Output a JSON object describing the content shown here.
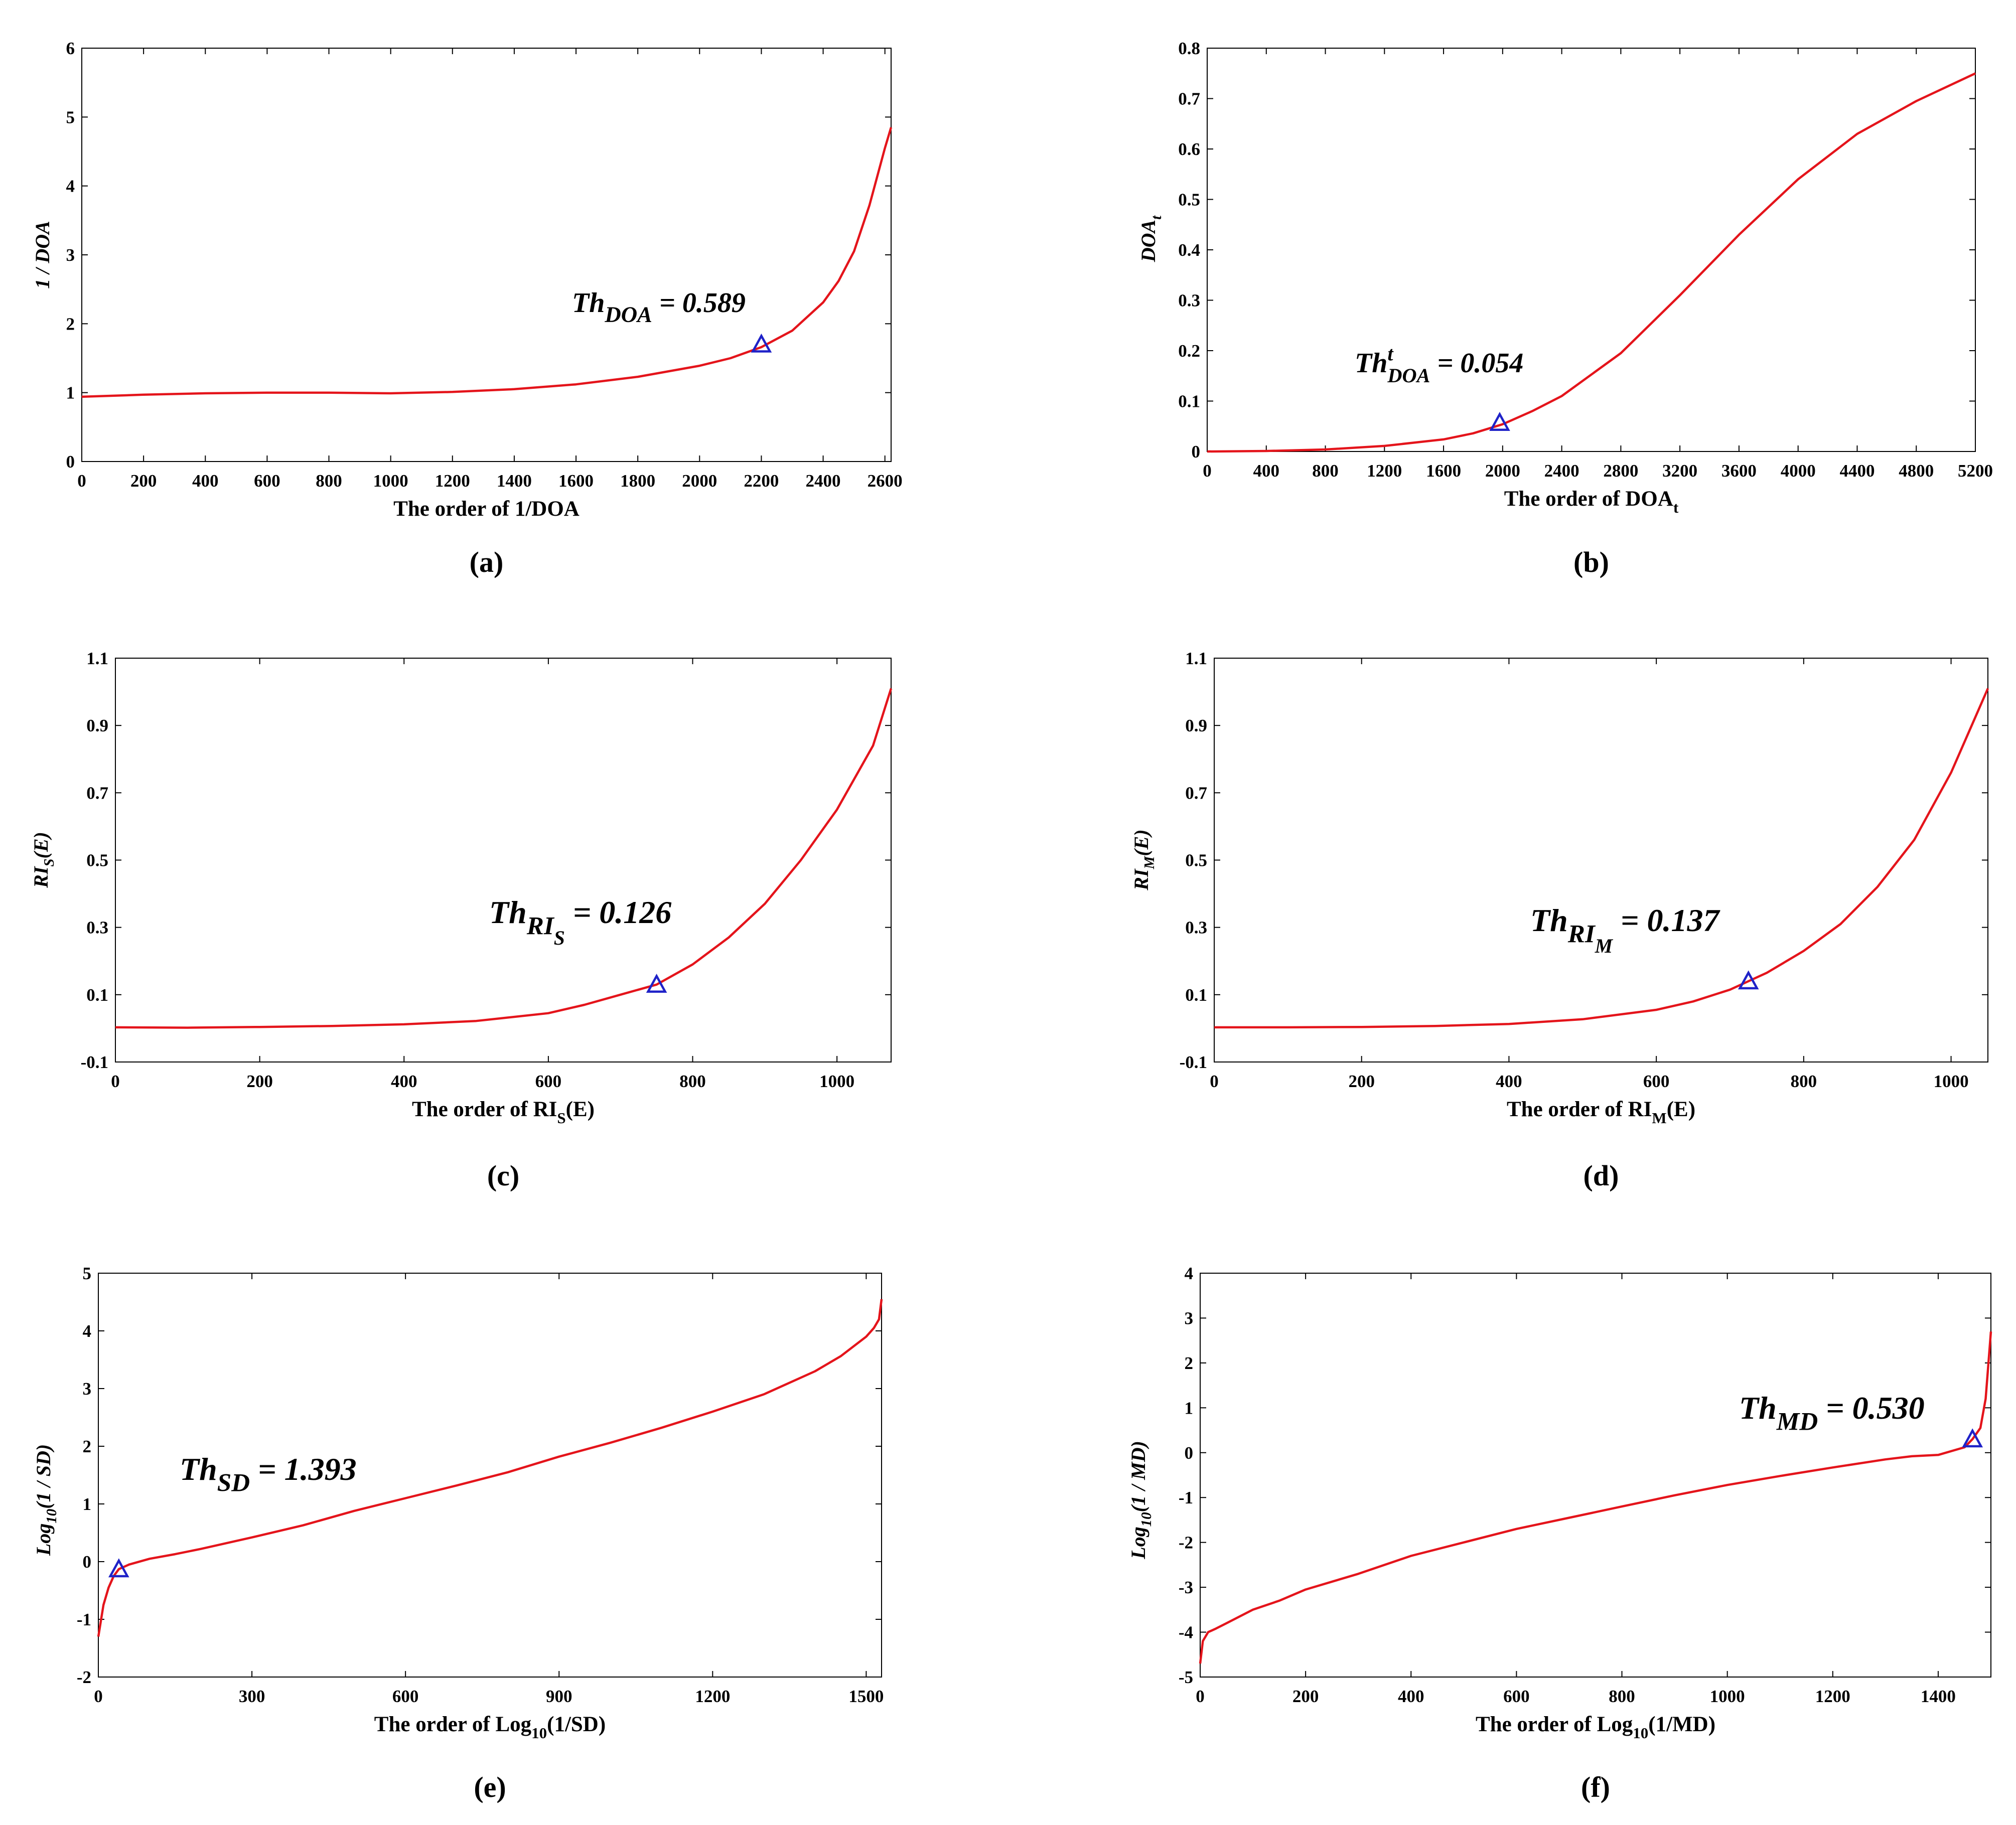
{
  "chart_data": [
    {
      "type": "line",
      "panel_label": "(a)",
      "xlabel": [
        "The order of 1/DOA"
      ],
      "ylabel": [
        "1 / DOA"
      ],
      "xlim": [
        0,
        2620
      ],
      "ylim": [
        0,
        6
      ],
      "xticks": [
        0,
        200,
        400,
        600,
        800,
        1000,
        1200,
        1400,
        1600,
        1800,
        2000,
        2200,
        2400,
        2600
      ],
      "yticks": [
        0,
        1,
        2,
        3,
        4,
        5,
        6
      ],
      "series": [
        {
          "name": "1/DOA",
          "x": [
            0,
            200,
            400,
            600,
            700,
            800,
            1000,
            1200,
            1400,
            1600,
            1800,
            2000,
            2100,
            2200,
            2300,
            2400,
            2450,
            2500,
            2550,
            2600,
            2620
          ],
          "y": [
            0.94,
            0.97,
            0.99,
            1.0,
            1.0,
            1.0,
            0.99,
            1.01,
            1.05,
            1.12,
            1.23,
            1.39,
            1.5,
            1.66,
            1.9,
            2.31,
            2.62,
            3.05,
            3.72,
            4.55,
            4.85
          ]
        }
      ],
      "marker": {
        "x": 2200,
        "y": 1.7
      },
      "annotation": [
        "Th",
        "DOA",
        "",
        " = 0.589"
      ],
      "grid": false
    },
    {
      "type": "line",
      "panel_label": "(b)",
      "xlabel": [
        "The order of DOA",
        "t"
      ],
      "ylabel": [
        "DOA",
        "t"
      ],
      "xlim": [
        0,
        5200
      ],
      "ylim": [
        0,
        0.8
      ],
      "xticks": [
        0,
        400,
        800,
        1200,
        1600,
        2000,
        2400,
        2800,
        3200,
        3600,
        4000,
        4400,
        4800,
        5200
      ],
      "yticks": [
        0,
        0.1,
        0.2,
        0.3,
        0.4,
        0.5,
        0.6,
        0.7,
        0.8
      ],
      "series": [
        {
          "name": "DOA_t",
          "x": [
            0,
            400,
            800,
            1200,
            1600,
            1800,
            2000,
            2200,
            2400,
            2800,
            3200,
            3600,
            4000,
            4400,
            4800,
            5200
          ],
          "y": [
            0.0,
            0.001,
            0.004,
            0.011,
            0.024,
            0.036,
            0.054,
            0.08,
            0.11,
            0.195,
            0.31,
            0.43,
            0.54,
            0.63,
            0.695,
            0.75
          ]
        }
      ],
      "marker": {
        "x": 1980,
        "y": 0.057
      },
      "annotation": [
        "Th",
        "DOA",
        "t",
        " = 0.054"
      ],
      "grid": false
    },
    {
      "type": "line",
      "panel_label": "(c)",
      "xlabel": [
        "The order of RI",
        "S",
        "(E)"
      ],
      "ylabel": [
        "RI",
        "S",
        "(E)"
      ],
      "xlim": [
        0,
        1075
      ],
      "ylim": [
        -0.1,
        1.1
      ],
      "xticks": [
        0,
        200,
        400,
        600,
        800,
        1000
      ],
      "yticks": [
        -0.1,
        0.1,
        0.3,
        0.5,
        0.7,
        0.9,
        1.1
      ],
      "series": [
        {
          "name": "RI_S(E)",
          "x": [
            0,
            100,
            200,
            300,
            400,
            500,
            600,
            650,
            700,
            750,
            800,
            850,
            900,
            950,
            1000,
            1050,
            1075
          ],
          "y": [
            0.003,
            0.002,
            0.004,
            0.007,
            0.012,
            0.022,
            0.045,
            0.07,
            0.1,
            0.13,
            0.19,
            0.27,
            0.37,
            0.5,
            0.65,
            0.84,
            1.01
          ]
        }
      ],
      "marker": {
        "x": 750,
        "y": 0.13
      },
      "annotation": [
        "Th",
        "RI",
        "",
        " = 0.126",
        "S"
      ],
      "grid": false
    },
    {
      "type": "line",
      "panel_label": "(d)",
      "xlabel": [
        "The order of RI",
        "M",
        "(E)"
      ],
      "ylabel": [
        "RI",
        "M",
        "(E)"
      ],
      "xlim": [
        0,
        1050
      ],
      "ylim": [
        -0.1,
        1.1
      ],
      "xticks": [
        0,
        200,
        400,
        600,
        800,
        1000
      ],
      "yticks": [
        -0.1,
        0.1,
        0.3,
        0.5,
        0.7,
        0.9,
        1.1
      ],
      "series": [
        {
          "name": "RI_M(E)",
          "x": [
            0,
            100,
            200,
            300,
            400,
            500,
            600,
            650,
            700,
            725,
            750,
            800,
            850,
            900,
            950,
            1000,
            1050
          ],
          "y": [
            0.003,
            0.003,
            0.004,
            0.007,
            0.013,
            0.027,
            0.055,
            0.08,
            0.115,
            0.14,
            0.165,
            0.23,
            0.31,
            0.42,
            0.56,
            0.76,
            1.01
          ]
        }
      ],
      "marker": {
        "x": 725,
        "y": 0.14
      },
      "annotation": [
        "Th",
        "RI",
        "",
        " = 0.137",
        "M"
      ],
      "grid": false
    },
    {
      "type": "line",
      "panel_label": "(e)",
      "xlabel": [
        "The order of Log",
        "10",
        "(1/SD)"
      ],
      "ylabel": [
        "Log",
        "10",
        "(1 / SD)"
      ],
      "xlim": [
        0,
        1530
      ],
      "ylim": [
        -2,
        5
      ],
      "xticks": [
        0,
        300,
        600,
        900,
        1200,
        1500
      ],
      "yticks": [
        -2,
        -1,
        0,
        1,
        2,
        3,
        4,
        5
      ],
      "series": [
        {
          "name": "Log10(1/SD)",
          "x": [
            0,
            10,
            20,
            30,
            40,
            60,
            100,
            150,
            200,
            300,
            400,
            500,
            600,
            700,
            800,
            900,
            1000,
            1100,
            1200,
            1300,
            1400,
            1450,
            1500,
            1515,
            1525,
            1530
          ],
          "y": [
            -1.3,
            -0.75,
            -0.45,
            -0.25,
            -0.13,
            -0.05,
            0.05,
            0.13,
            0.22,
            0.42,
            0.63,
            0.88,
            1.1,
            1.32,
            1.55,
            1.82,
            2.06,
            2.32,
            2.6,
            2.9,
            3.3,
            3.56,
            3.9,
            4.05,
            4.2,
            4.55
          ]
        }
      ],
      "marker": {
        "x": 40,
        "y": -0.13
      },
      "annotation": [
        "Th",
        "SD",
        "",
        " = 1.393"
      ],
      "grid": false
    },
    {
      "type": "line",
      "panel_label": "(f)",
      "xlabel": [
        "The order of Log",
        "10",
        "(1/MD)"
      ],
      "ylabel": [
        "Log",
        "10",
        "(1 / MD)"
      ],
      "xlim": [
        0,
        1500
      ],
      "ylim": [
        -5,
        4
      ],
      "xticks": [
        0,
        200,
        400,
        600,
        800,
        1000,
        1200,
        1400
      ],
      "yticks": [
        -5,
        -4,
        -3,
        -2,
        -1,
        0,
        1,
        2,
        3,
        4
      ],
      "series": [
        {
          "name": "Log10(1/MD)",
          "x": [
            0,
            5,
            15,
            30,
            50,
            100,
            150,
            200,
            300,
            400,
            500,
            600,
            700,
            800,
            900,
            1000,
            1100,
            1200,
            1300,
            1350,
            1400,
            1450,
            1465,
            1480,
            1490,
            1500
          ],
          "y": [
            -4.7,
            -4.2,
            -4.0,
            -3.92,
            -3.8,
            -3.5,
            -3.3,
            -3.05,
            -2.7,
            -2.3,
            -2.0,
            -1.7,
            -1.45,
            -1.2,
            -0.95,
            -0.72,
            -0.52,
            -0.33,
            -0.15,
            -0.08,
            -0.05,
            0.12,
            0.3,
            0.55,
            1.2,
            2.7
          ]
        }
      ],
      "marker": {
        "x": 1465,
        "y": 0.3
      },
      "annotation": [
        "Th",
        "MD",
        "",
        " = 0.530"
      ],
      "grid": false
    }
  ]
}
